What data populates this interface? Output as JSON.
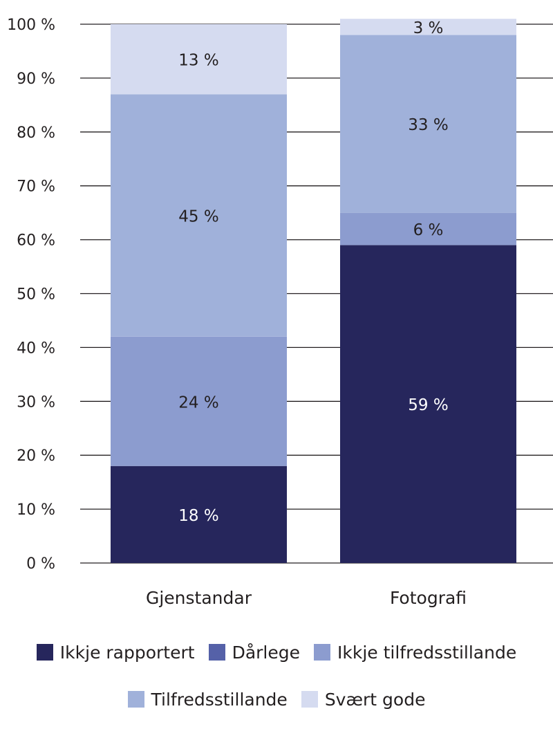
{
  "chart_data": {
    "type": "bar",
    "stacked": true,
    "categories": [
      "Gjenstandar",
      "Fotografi"
    ],
    "series": [
      {
        "name": "Ikkje rapportert",
        "color": "#26265c",
        "values": [
          18,
          59
        ],
        "labels": [
          "18 %",
          "59 %"
        ],
        "label_color": "#ffffff"
      },
      {
        "name": "Dårlege",
        "color": "#5561a8",
        "values": [
          0,
          0
        ],
        "labels": [
          "",
          ""
        ],
        "label_color": "#231f20"
      },
      {
        "name": "Ikkje tilfredsstillande",
        "color": "#8c9ccf",
        "values": [
          24,
          6
        ],
        "labels": [
          "24 %",
          "6 %"
        ],
        "label_color": "#231f20"
      },
      {
        "name": "Tilfredsstillande",
        "color": "#a0b1da",
        "values": [
          45,
          33
        ],
        "labels": [
          "45 %",
          "33 %"
        ],
        "label_color": "#231f20"
      },
      {
        "name": "Svært gode",
        "color": "#d5dbf0",
        "values": [
          13,
          3
        ],
        "labels": [
          "13 %",
          "3 %"
        ],
        "label_color": "#231f20"
      }
    ],
    "ylim": [
      0,
      100
    ],
    "y_ticks": [
      0,
      10,
      20,
      30,
      40,
      50,
      60,
      70,
      80,
      90,
      100
    ],
    "y_tick_labels": [
      "0 %",
      "10 %",
      "20 %",
      "30 %",
      "40 %",
      "50 %",
      "60 %",
      "70 %",
      "80 %",
      "90 %",
      "100 %"
    ],
    "grid": true,
    "legend_position": "bottom"
  }
}
